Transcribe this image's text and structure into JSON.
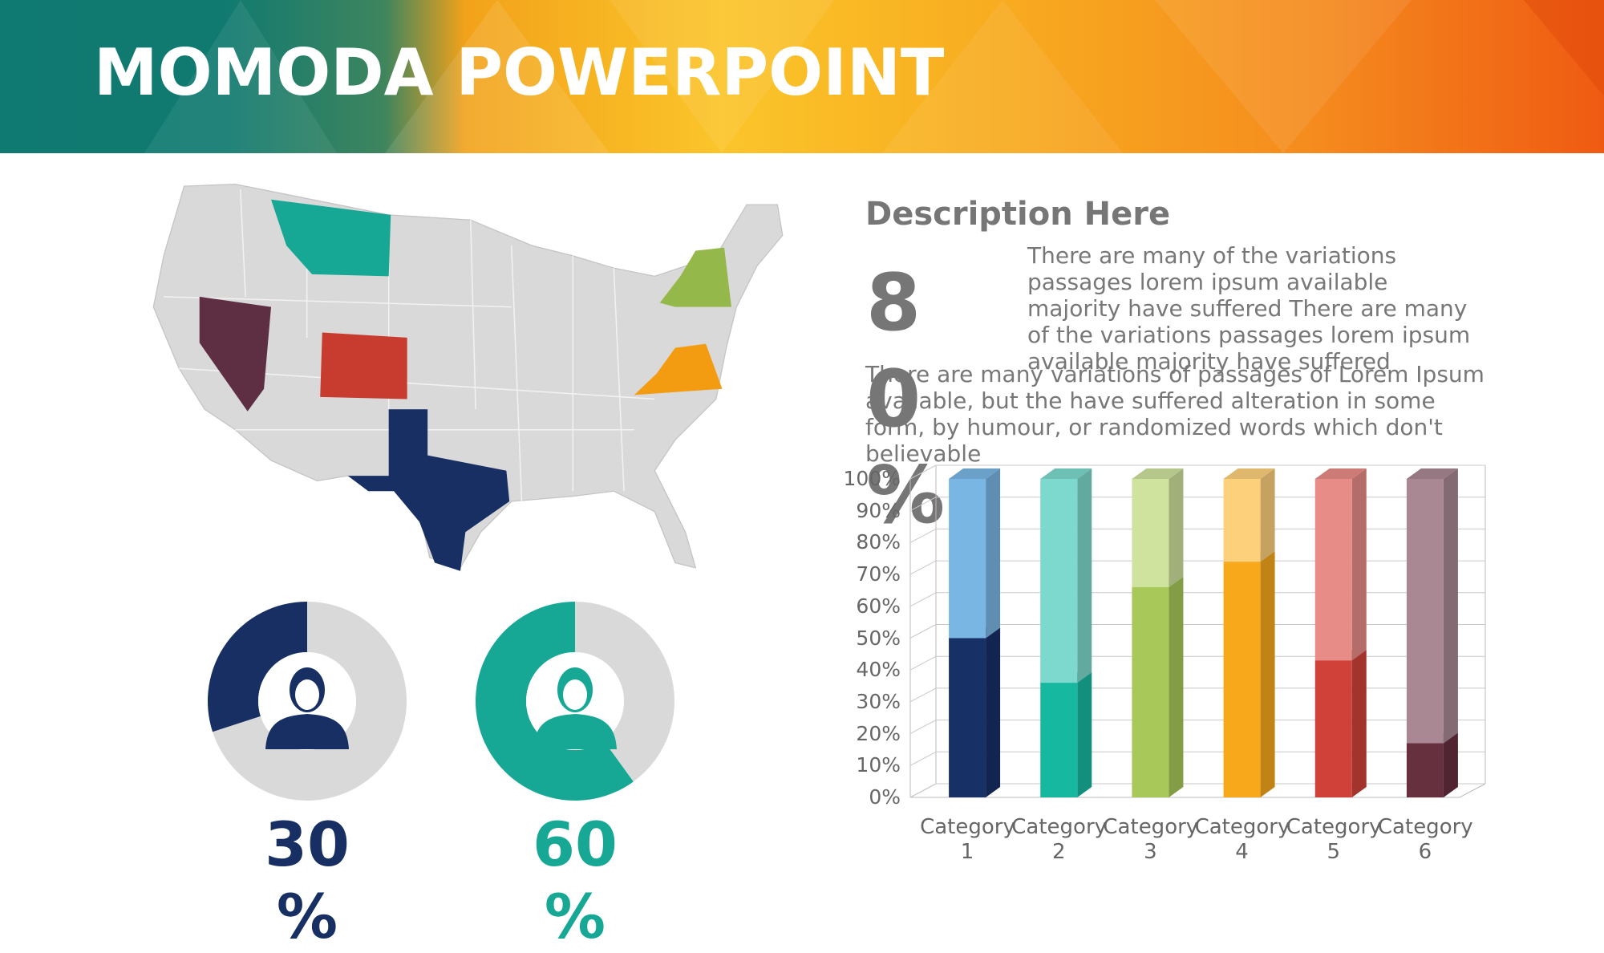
{
  "header": {
    "title": "MOMODA POWERPOINT"
  },
  "description": {
    "heading": "Description Here",
    "stat": "80%",
    "paragraph1": "There are many of the variations passages lorem ipsum available majority have suffered There are many of the variations passages lorem ipsum available majority have suffered",
    "paragraph2": "There are many variations of passages  of Lorem Ipsum available, but the have suffered alteration in some  form, by humour, or randomized words which  don't believable"
  },
  "chart_data": [
    {
      "type": "bar",
      "stacked": true,
      "categories": [
        "Category 1",
        "Category 2",
        "Category 3",
        "Category 4",
        "Category 5",
        "Category 6"
      ],
      "series": [
        {
          "values": [
            50,
            36,
            66,
            74,
            43,
            17
          ],
          "colors": [
            "#173066",
            "#17b8a0",
            "#a8c85a",
            "#f7a81b",
            "#d0413a",
            "#66303f"
          ]
        },
        {
          "values": [
            50,
            64,
            34,
            26,
            57,
            83
          ],
          "colors": [
            "#7ab6e4",
            "#7dd9cd",
            "#cfe29e",
            "#fdd07c",
            "#e88c87",
            "#a98893"
          ]
        }
      ],
      "ylim": [
        0,
        100
      ],
      "yticks": [
        {
          "value": 0,
          "label": "0%"
        },
        {
          "value": 10,
          "label": "10%"
        },
        {
          "value": 20,
          "label": "20%"
        },
        {
          "value": 30,
          "label": "30%"
        },
        {
          "value": 40,
          "label": "40%"
        },
        {
          "value": 50,
          "label": "50%"
        },
        {
          "value": 60,
          "label": "60%"
        },
        {
          "value": 70,
          "label": "70%"
        },
        {
          "value": 80,
          "label": "80%"
        },
        {
          "value": 90,
          "label": "90%"
        },
        {
          "value": 100,
          "label": "100%"
        }
      ],
      "grid": true
    },
    {
      "type": "donut",
      "values": [
        30,
        70
      ],
      "colors": [
        "#172f63",
        "#d9d9d9"
      ],
      "label": "30%",
      "label_color": "#172f63"
    },
    {
      "type": "donut",
      "values": [
        60,
        40
      ],
      "colors": [
        "#17a895",
        "#d9d9d9"
      ],
      "label": "60%",
      "label_color": "#17a895"
    }
  ]
}
